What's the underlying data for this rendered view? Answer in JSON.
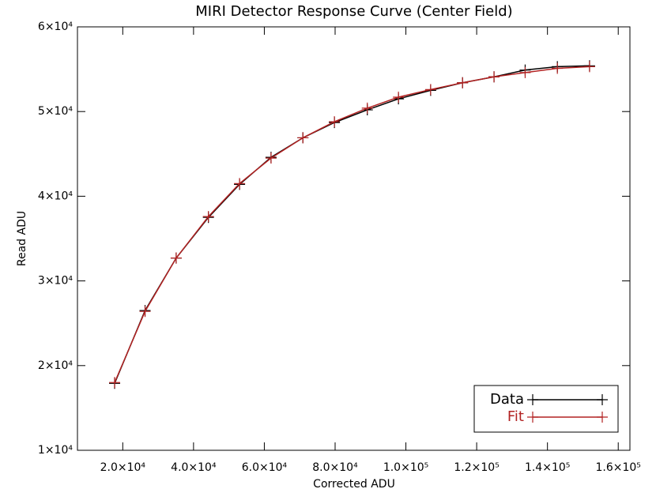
{
  "chart_data": {
    "type": "line",
    "title": "MIRI Detector Response Curve (Center Field)",
    "x_label": "Corrected ADU",
    "y_label": "Read ADU",
    "xlim": [
      7200,
      163300
    ],
    "ylim": [
      10000,
      60000
    ],
    "xticks": [
      {
        "value": 20000,
        "label": "2.0×10⁴"
      },
      {
        "value": 40000,
        "label": "4.0×10⁴"
      },
      {
        "value": 60000,
        "label": "6.0×10⁴"
      },
      {
        "value": 80000,
        "label": "8.0×10⁴"
      },
      {
        "value": 100000,
        "label": "1.0×10⁵"
      },
      {
        "value": 120000,
        "label": "1.2×10⁵"
      },
      {
        "value": 140000,
        "label": "1.4×10⁵"
      },
      {
        "value": 160000,
        "label": "1.6×10⁵"
      }
    ],
    "yticks": [
      {
        "value": 10000,
        "label": "1×10⁴"
      },
      {
        "value": 20000,
        "label": "2×10⁴"
      },
      {
        "value": 30000,
        "label": "3×10⁴"
      },
      {
        "value": 40000,
        "label": "4×10⁴"
      },
      {
        "value": 50000,
        "label": "5×10⁴"
      },
      {
        "value": 60000,
        "label": "6×10⁴"
      }
    ],
    "legend_position": "lower right",
    "series": [
      {
        "name": "Data",
        "color": "#000000",
        "x": [
          17700,
          26300,
          35100,
          44200,
          53000,
          61900,
          70900,
          79800,
          89100,
          97900,
          107000,
          116000,
          124900,
          133700,
          142800,
          151900
        ],
        "values": [
          17900,
          26500,
          32700,
          37500,
          41400,
          44600,
          46900,
          48700,
          50200,
          51500,
          52500,
          53400,
          54100,
          54900,
          55300,
          55400
        ]
      },
      {
        "name": "Fit",
        "color": "#b22222",
        "x": [
          17700,
          26300,
          35100,
          44200,
          53000,
          61900,
          70900,
          79800,
          89100,
          97900,
          107000,
          116000,
          124900,
          133700,
          142800,
          151900
        ],
        "values": [
          18000,
          26400,
          32700,
          37600,
          41500,
          44500,
          46900,
          48800,
          50400,
          51700,
          52600,
          53400,
          54100,
          54600,
          55100,
          55300
        ]
      }
    ]
  }
}
